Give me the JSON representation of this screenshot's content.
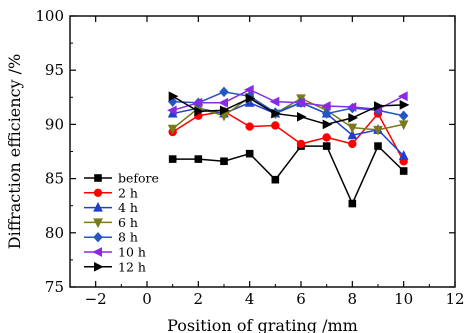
{
  "chart_data": {
    "type": "line",
    "xlabel": "Position of grating /mm",
    "ylabel": "Diffraction efficiency /%",
    "xlim": [
      -3,
      12
    ],
    "ylim": [
      75,
      100
    ],
    "xticks": [
      -2,
      0,
      2,
      4,
      6,
      8,
      10,
      12
    ],
    "yticks": [
      75,
      80,
      85,
      90,
      95,
      100
    ],
    "xtick_labels": [
      "−2",
      "0",
      "2",
      "4",
      "6",
      "8",
      "10",
      "12"
    ],
    "ytick_labels": [
      "75",
      "80",
      "85",
      "90",
      "95",
      "100"
    ],
    "x": [
      1,
      2,
      3,
      4,
      5,
      6,
      7,
      8,
      9,
      10
    ],
    "grid": false,
    "legend_position": "bottom-left",
    "series": [
      {
        "name": "before",
        "color": "#000000",
        "marker": "square",
        "values": [
          86.8,
          86.8,
          86.6,
          87.3,
          84.9,
          88.0,
          88.0,
          82.7,
          88.0,
          85.7
        ]
      },
      {
        "name": "2 h",
        "color": "#ff0000",
        "marker": "circle",
        "values": [
          89.3,
          90.8,
          91.2,
          89.8,
          89.9,
          88.2,
          88.8,
          88.2,
          91.0,
          86.6
        ]
      },
      {
        "name": "4 h",
        "color": "#1f3fd0",
        "marker": "triangle-up",
        "values": [
          91.0,
          91.5,
          91.0,
          92.0,
          91.0,
          92.0,
          91.0,
          89.0,
          89.5,
          87.1
        ]
      },
      {
        "name": "6 h",
        "color": "#7a7a1a",
        "marker": "triangle-down",
        "values": [
          89.6,
          91.5,
          90.8,
          92.5,
          91.0,
          92.4,
          91.3,
          89.7,
          89.5,
          90.0
        ]
      },
      {
        "name": "8 h",
        "color": "#2457c4",
        "marker": "diamond",
        "values": [
          92.1,
          92.0,
          93.0,
          92.6,
          91.1,
          92.0,
          91.0,
          91.5,
          91.3,
          90.8
        ]
      },
      {
        "name": "10 h",
        "color": "#8a2be2",
        "marker": "triangle-left",
        "values": [
          91.3,
          92.0,
          92.0,
          93.2,
          92.1,
          92.0,
          91.7,
          91.6,
          91.4,
          92.6
        ]
      },
      {
        "name": "12 h",
        "color": "#000000",
        "marker": "triangle-right",
        "values": [
          92.6,
          91.2,
          91.3,
          92.4,
          91.0,
          90.7,
          90.0,
          90.6,
          91.7,
          91.8
        ]
      }
    ]
  }
}
